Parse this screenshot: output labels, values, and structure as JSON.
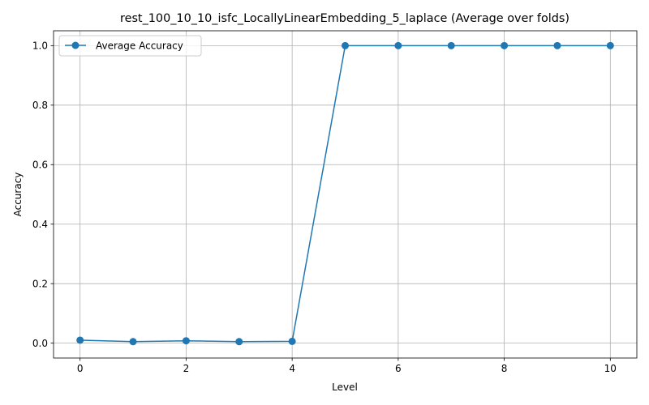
{
  "chart_data": {
    "type": "line",
    "title": "rest_100_10_10_isfc_LocallyLinearEmbedding_5_laplace (Average over folds)",
    "xlabel": "Level",
    "ylabel": "Accuracy",
    "xlim": [
      -0.5,
      10.5
    ],
    "ylim": [
      -0.05,
      1.05
    ],
    "xticks": [
      0,
      2,
      4,
      6,
      8,
      10
    ],
    "yticks": [
      0.0,
      0.2,
      0.4,
      0.6,
      0.8,
      1.0
    ],
    "xtick_labels": [
      "0",
      "2",
      "4",
      "6",
      "8",
      "10"
    ],
    "ytick_labels": [
      "0.0",
      "0.2",
      "0.4",
      "0.6",
      "0.8",
      "1.0"
    ],
    "grid": true,
    "legend_position": "top-left",
    "series": [
      {
        "name": "Average Accuracy",
        "color": "#1f77b4",
        "marker": "circle",
        "x": [
          0,
          1,
          2,
          3,
          4,
          5,
          6,
          7,
          8,
          9,
          10
        ],
        "y": [
          0.01,
          0.005,
          0.008,
          0.005,
          0.006,
          1.0,
          1.0,
          1.0,
          1.0,
          1.0,
          1.0
        ]
      }
    ]
  }
}
